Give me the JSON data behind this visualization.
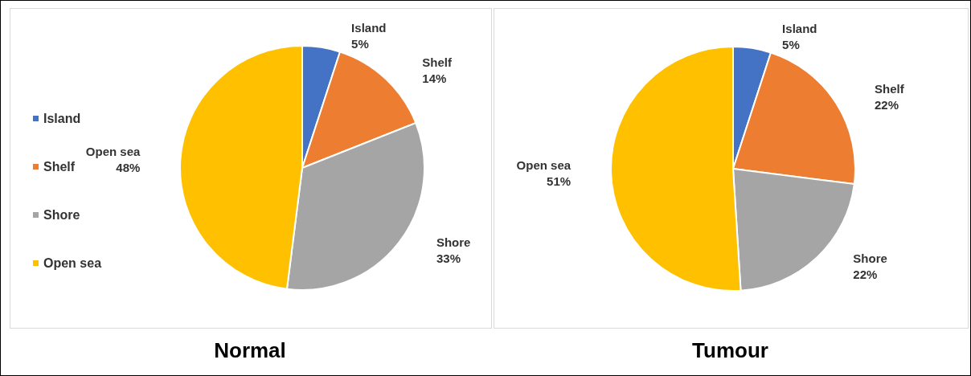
{
  "chart_data": [
    {
      "type": "pie",
      "title": "Normal",
      "categories": [
        "Island",
        "Shelf",
        "Shore",
        "Open sea"
      ],
      "values": [
        5,
        14,
        33,
        48
      ],
      "value_labels": [
        "5%",
        "14%",
        "33%",
        "48%"
      ],
      "colors": [
        "#4472c4",
        "#ed7d31",
        "#a5a5a5",
        "#ffc000"
      ],
      "legend": "left"
    },
    {
      "type": "pie",
      "title": "Tumour",
      "categories": [
        "Island",
        "Shelf",
        "Shore",
        "Open sea"
      ],
      "values": [
        5,
        22,
        22,
        51
      ],
      "value_labels": [
        "5%",
        "22%",
        "22%",
        "51%"
      ],
      "colors": [
        "#4472c4",
        "#ed7d31",
        "#a5a5a5",
        "#ffc000"
      ],
      "legend": false
    }
  ]
}
